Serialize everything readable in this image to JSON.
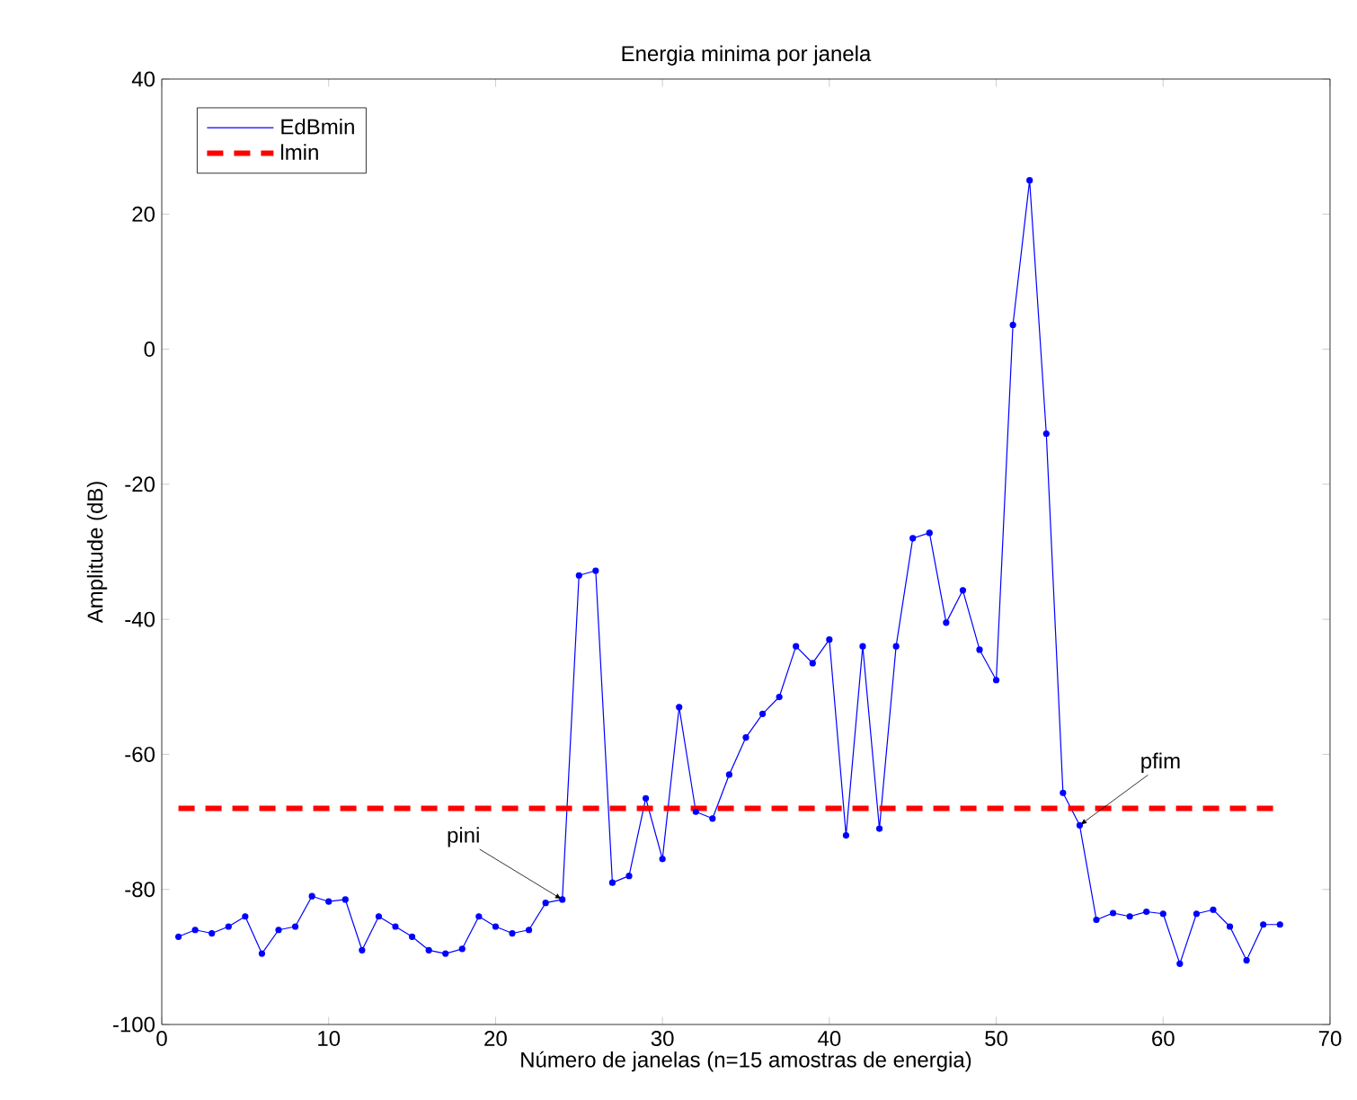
{
  "chart_data": {
    "type": "line",
    "title": "Energia minima por janela",
    "xlabel": "Número de janelas (n=15 amostras de energia)",
    "ylabel": "Amplitude (dB)",
    "x": [
      1,
      2,
      3,
      4,
      5,
      6,
      7,
      8,
      9,
      10,
      11,
      12,
      13,
      14,
      15,
      16,
      17,
      18,
      19,
      20,
      21,
      22,
      23,
      24,
      25,
      26,
      27,
      28,
      29,
      30,
      31,
      32,
      33,
      34,
      35,
      36,
      37,
      38,
      39,
      40,
      41,
      42,
      43,
      44,
      45,
      46,
      47,
      48,
      49,
      50,
      51,
      52,
      53,
      54,
      55,
      56,
      57,
      58,
      59,
      60,
      61,
      62,
      63,
      64,
      65,
      66,
      67
    ],
    "series": [
      {
        "name": "EdBmin",
        "color": "#0000ff",
        "values": [
          -87,
          -86,
          -86.5,
          -85.5,
          -84,
          -89.5,
          -86,
          -85.5,
          -81,
          -81.8,
          -81.5,
          -89,
          -84,
          -85.5,
          -87,
          -89,
          -89.5,
          -88.8,
          -84,
          -85.5,
          -86.5,
          -86,
          -82,
          -81.5,
          -33.5,
          -32.8,
          -79,
          -78,
          -66.5,
          -75.5,
          -53,
          -68.5,
          -69.5,
          -63,
          -57.5,
          -54,
          -51.5,
          -44,
          -46.5,
          -43,
          -72,
          -44,
          -71,
          -44,
          -28,
          -27.2,
          -40.5,
          -35.7,
          -44.5,
          -49,
          3.6,
          25,
          -12.5,
          -65.7,
          -70.5,
          -84.5,
          -83.5,
          -84,
          -83.3,
          -83.6,
          -91,
          -83.6,
          -83,
          -85.5,
          -90.5,
          -85.2,
          -85.2
        ]
      }
    ],
    "ref_lines": [
      {
        "axis": "y",
        "value": -68,
        "label": "lmin",
        "color": "#ff0000",
        "line_style": "dashed"
      }
    ],
    "annotations": [
      {
        "text": "pini",
        "x": 24,
        "y": -81.5
      },
      {
        "text": "pfim",
        "x": 55,
        "y": -70.5
      }
    ],
    "xlim": [
      0,
      70
    ],
    "ylim": [
      -100,
      40
    ],
    "xticks": [
      0,
      10,
      20,
      30,
      40,
      50,
      60,
      70
    ],
    "yticks": [
      -100,
      -80,
      -60,
      -40,
      -20,
      0,
      20,
      40
    ],
    "grid": false,
    "legend": "top left",
    "marker": "circle",
    "line_style": "solid"
  }
}
